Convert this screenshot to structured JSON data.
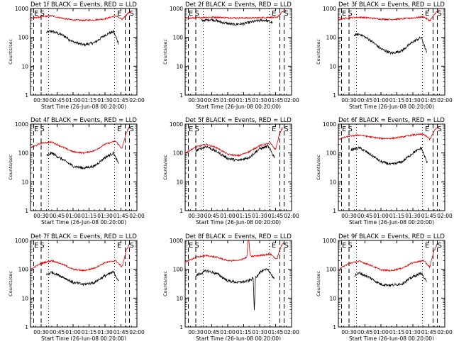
{
  "figure": {
    "xlabel": "Start Time (26-Jun-08 00:20:00)",
    "ylabel": "Counts/sec",
    "x_ticks": [
      "00:30",
      "00:45",
      "01:00",
      "01:15",
      "01:30",
      "01:45",
      "02:00"
    ],
    "y_ticks": [
      "1",
      "10",
      "100",
      "1000"
    ],
    "colors": {
      "events": "#000000",
      "lld": "#e00000"
    }
  },
  "chart_data": [
    {
      "type": "line",
      "title": "Det 1f BLACK = Events, RED = LLD",
      "xlabel": "Start Time (26-Jun-08 00:20:00)",
      "ylabel": "Counts/sec",
      "y_scale": "log",
      "ylim": [
        1,
        1000
      ],
      "x_range_minutes": [
        0,
        100
      ],
      "markers": {
        "E_left": 2,
        "S_left": 3,
        "E_right": 84,
        "S_right": 91
      },
      "series": [
        {
          "name": "Events",
          "color": "#000000",
          "x": [
            15,
            20,
            30,
            40,
            50,
            60,
            70,
            78,
            83
          ],
          "y": [
            150,
            165,
            120,
            70,
            55,
            65,
            120,
            160,
            60
          ]
        },
        {
          "name": "LLD",
          "color": "#e00000",
          "x": [
            0,
            10,
            20,
            30,
            40,
            50,
            60,
            70,
            80,
            86,
            92,
            95
          ],
          "y": [
            450,
            520,
            560,
            460,
            400,
            390,
            400,
            440,
            560,
            420,
            700,
            800
          ]
        }
      ]
    },
    {
      "type": "line",
      "title": "Det 2f BLACK = Events, RED = LLD",
      "xlabel": "Start Time (26-Jun-08 00:20:00)",
      "ylabel": "Counts/sec",
      "y_scale": "log",
      "ylim": [
        1,
        1000
      ],
      "x_range_minutes": [
        0,
        100
      ],
      "markers": {
        "E_left": 2,
        "S_left": 3,
        "E_right": 84,
        "S_right": 91
      },
      "series": [
        {
          "name": "Events",
          "color": "#000000",
          "x": [
            15,
            25,
            35,
            45,
            55,
            65,
            75,
            82
          ],
          "y": [
            380,
            420,
            330,
            280,
            300,
            360,
            400,
            320
          ]
        },
        {
          "name": "LLD",
          "color": "#e00000",
          "x": [
            0,
            10,
            20,
            30,
            40,
            50,
            60,
            70,
            80,
            86,
            92,
            95
          ],
          "y": [
            450,
            480,
            500,
            500,
            480,
            470,
            470,
            480,
            500,
            480,
            800,
            900
          ]
        }
      ]
    },
    {
      "type": "line",
      "title": "Det 3f BLACK = Events, RED = LLD",
      "xlabel": "Start Time (26-Jun-08 00:20:00)",
      "ylabel": "Counts/sec",
      "y_scale": "log",
      "ylim": [
        1,
        1000
      ],
      "x_range_minutes": [
        0,
        100
      ],
      "markers": {
        "E_left": 2,
        "S_left": 3,
        "E_right": 84,
        "S_right": 91
      },
      "series": [
        {
          "name": "Events",
          "color": "#000000",
          "x": [
            15,
            20,
            30,
            40,
            50,
            60,
            70,
            78,
            83
          ],
          "y": [
            120,
            130,
            80,
            40,
            28,
            35,
            70,
            100,
            30
          ]
        },
        {
          "name": "LLD",
          "color": "#e00000",
          "x": [
            0,
            10,
            20,
            30,
            40,
            50,
            60,
            70,
            80,
            86,
            92,
            95
          ],
          "y": [
            420,
            480,
            500,
            470,
            430,
            420,
            440,
            470,
            520,
            380,
            750,
            900
          ]
        }
      ]
    },
    {
      "type": "line",
      "title": "Det 4f BLACK = Events, RED = LLD",
      "xlabel": "Start Time (26-Jun-08 00:20:00)",
      "ylabel": "Counts/sec",
      "y_scale": "log",
      "ylim": [
        1,
        1000
      ],
      "x_range_minutes": [
        0,
        100
      ],
      "markers": {
        "E_left": 2,
        "S_left": 3,
        "E_right": 84,
        "S_right": 91
      },
      "series": [
        {
          "name": "Events",
          "color": "#000000",
          "x": [
            15,
            20,
            30,
            40,
            50,
            60,
            70,
            78,
            83
          ],
          "y": [
            80,
            100,
            60,
            35,
            30,
            35,
            70,
            100,
            40
          ]
        },
        {
          "name": "LLD",
          "color": "#e00000",
          "x": [
            0,
            10,
            20,
            30,
            40,
            50,
            60,
            70,
            80,
            86,
            90,
            93
          ],
          "y": [
            150,
            220,
            240,
            160,
            110,
            100,
            120,
            200,
            260,
            140,
            500,
            800
          ]
        }
      ]
    },
    {
      "type": "line",
      "title": "Det 5f BLACK = Events, RED = LLD",
      "xlabel": "Start Time (26-Jun-08 00:20:00)",
      "ylabel": "Counts/sec",
      "y_scale": "log",
      "ylim": [
        1,
        1000
      ],
      "x_range_minutes": [
        0,
        100
      ],
      "markers": {
        "E_left": 2,
        "S_left": 3,
        "E_right": 84,
        "S_right": 91
      },
      "series": [
        {
          "name": "Events",
          "color": "#000000",
          "x": [
            10,
            20,
            30,
            40,
            50,
            60,
            70,
            78,
            84
          ],
          "y": [
            120,
            170,
            110,
            65,
            55,
            70,
            140,
            170,
            70
          ]
        },
        {
          "name": "LLD",
          "color": "#e00000",
          "x": [
            0,
            10,
            20,
            30,
            40,
            50,
            60,
            70,
            80,
            85,
            89,
            92
          ],
          "y": [
            100,
            160,
            200,
            150,
            90,
            80,
            110,
            180,
            220,
            130,
            500,
            800
          ]
        }
      ]
    },
    {
      "type": "line",
      "title": "Det 6f BLACK = Events, RED = LLD",
      "xlabel": "Start Time (26-Jun-08 00:20:00)",
      "ylabel": "Counts/sec",
      "y_scale": "log",
      "ylim": [
        1,
        1000
      ],
      "x_range_minutes": [
        0,
        100
      ],
      "markers": {
        "E_left": 2,
        "S_left": 3,
        "E_right": 84,
        "S_right": 91
      },
      "series": [
        {
          "name": "Events",
          "color": "#000000",
          "x": [
            12,
            20,
            30,
            40,
            50,
            60,
            70,
            78,
            84
          ],
          "y": [
            130,
            150,
            90,
            50,
            40,
            50,
            100,
            150,
            40
          ]
        },
        {
          "name": "LLD",
          "color": "#e00000",
          "x": [
            0,
            10,
            20,
            30,
            40,
            50,
            60,
            70,
            80,
            86,
            91,
            94
          ],
          "y": [
            300,
            380,
            420,
            360,
            320,
            320,
            360,
            420,
            450,
            300,
            650,
            850
          ]
        }
      ]
    },
    {
      "type": "line",
      "title": "Det 7f BLACK = Events, RED = LLD",
      "xlabel": "Start Time (26-Jun-08 00:20:00)",
      "ylabel": "Counts/sec",
      "y_scale": "log",
      "ylim": [
        1,
        1000
      ],
      "x_range_minutes": [
        0,
        100
      ],
      "markers": {
        "E_left": 2,
        "S_left": 3,
        "E_right": 84,
        "S_right": 91
      },
      "series": [
        {
          "name": "Events",
          "color": "#000000",
          "x": [
            15,
            20,
            30,
            40,
            50,
            60,
            70,
            78,
            83
          ],
          "y": [
            65,
            80,
            55,
            35,
            30,
            35,
            60,
            80,
            40
          ]
        },
        {
          "name": "LLD",
          "color": "#e00000",
          "x": [
            0,
            10,
            20,
            30,
            40,
            50,
            60,
            70,
            80,
            86,
            90,
            93
          ],
          "y": [
            100,
            160,
            200,
            150,
            100,
            90,
            110,
            170,
            200,
            120,
            450,
            750
          ]
        }
      ]
    },
    {
      "type": "line",
      "title": "Det 8f BLACK = Events, RED = LLD",
      "xlabel": "Start Time (26-Jun-08 00:20:00)",
      "ylabel": "Counts/sec",
      "y_scale": "log",
      "ylim": [
        1,
        1000
      ],
      "x_range_minutes": [
        0,
        100
      ],
      "markers": {
        "E_left": 2,
        "S_left": 3,
        "E_right": 84,
        "S_right": 91
      },
      "series": [
        {
          "name": "Events",
          "color": "#000000",
          "x": [
            10,
            20,
            30,
            40,
            50,
            60,
            64,
            65,
            66,
            70,
            78,
            84
          ],
          "y": [
            60,
            90,
            70,
            40,
            35,
            40,
            50,
            3,
            50,
            80,
            100,
            45
          ]
        },
        {
          "name": "LLD",
          "color": "#e00000",
          "x": [
            0,
            10,
            20,
            30,
            40,
            50,
            58,
            59,
            60,
            61,
            62,
            70,
            80,
            86,
            90,
            93
          ],
          "y": [
            180,
            260,
            300,
            260,
            200,
            200,
            260,
            1000,
            1000,
            300,
            280,
            300,
            340,
            220,
            600,
            900
          ]
        }
      ]
    },
    {
      "type": "line",
      "title": "Det 9f BLACK = Events, RED = LLD",
      "xlabel": "Start Time (26-Jun-08 00:20:00)",
      "ylabel": "Counts/sec",
      "y_scale": "log",
      "ylim": [
        1,
        1000
      ],
      "x_range_minutes": [
        0,
        100
      ],
      "markers": {
        "E_left": 2,
        "S_left": 3,
        "E_right": 84,
        "S_right": 91
      },
      "series": [
        {
          "name": "Events",
          "color": "#000000",
          "x": [
            15,
            20,
            30,
            40,
            50,
            60,
            70,
            78,
            83
          ],
          "y": [
            60,
            75,
            50,
            30,
            28,
            32,
            55,
            75,
            35
          ]
        },
        {
          "name": "LLD",
          "color": "#e00000",
          "x": [
            0,
            10,
            20,
            30,
            40,
            50,
            60,
            70,
            80,
            86,
            90,
            93
          ],
          "y": [
            100,
            160,
            190,
            140,
            95,
            90,
            110,
            170,
            200,
            120,
            450,
            750
          ]
        }
      ]
    }
  ]
}
